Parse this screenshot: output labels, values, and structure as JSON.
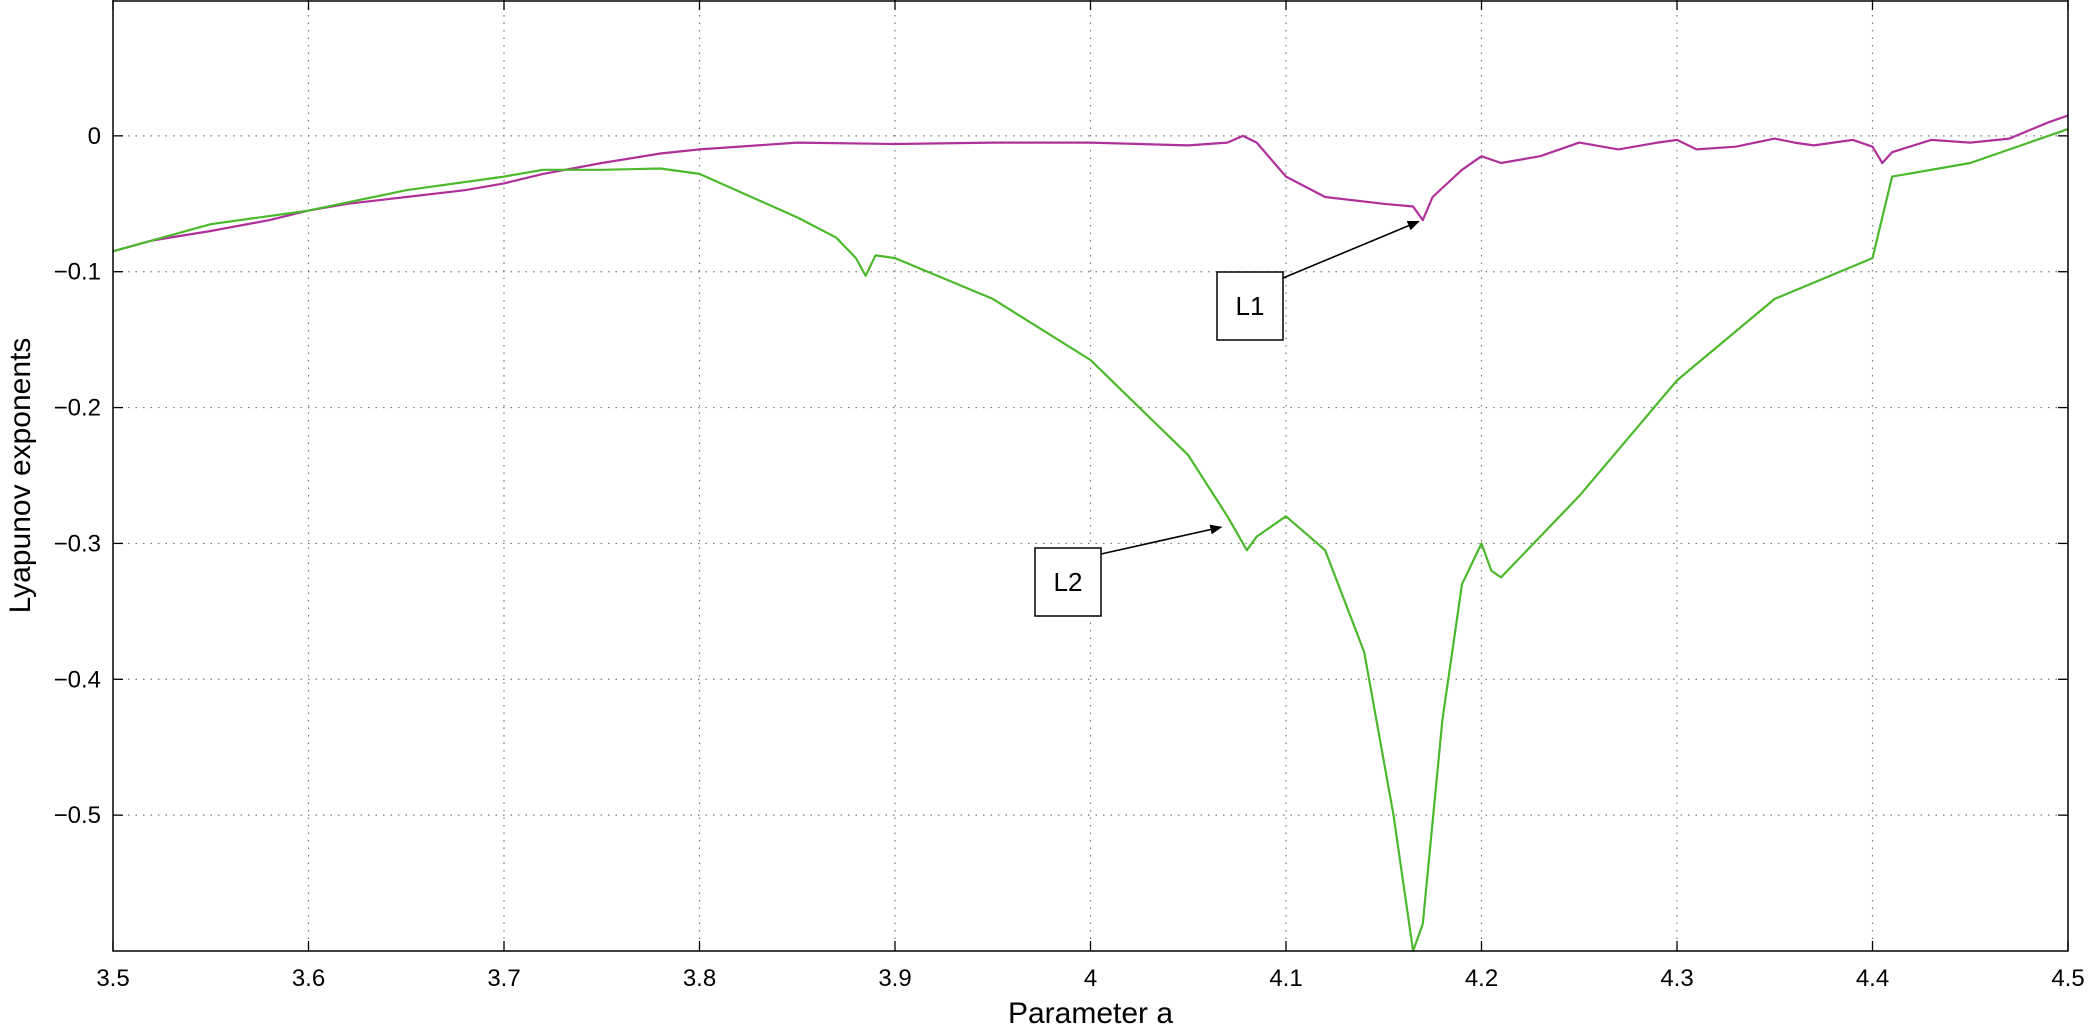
{
  "chart_data": {
    "type": "line",
    "xlabel": "Parameter a",
    "ylabel": "Lyapunov exponents",
    "xlim": [
      3.5,
      4.5
    ],
    "ylim": [
      -0.6,
      0.1
    ],
    "xticks": [
      3.5,
      3.6,
      3.7,
      3.8,
      3.9,
      4,
      4.1,
      4.2,
      4.3,
      4.4,
      4.5
    ],
    "xtick_labels": [
      "3.5",
      "3.6",
      "3.7",
      "3.8",
      "3.9",
      "4",
      "4.1",
      "4.2",
      "4.3",
      "4.4",
      "4.5"
    ],
    "yticks": [
      0,
      -0.1,
      -0.2,
      -0.3,
      -0.4,
      -0.5
    ],
    "ytick_labels": [
      "0",
      "−0.1",
      "−0.2",
      "−0.3",
      "−0.4",
      "−0.5"
    ],
    "grid": true,
    "series": [
      {
        "name": "L1",
        "color": "#b0309a",
        "x": [
          3.5,
          3.52,
          3.55,
          3.58,
          3.6,
          3.62,
          3.65,
          3.68,
          3.7,
          3.72,
          3.75,
          3.78,
          3.8,
          3.85,
          3.9,
          3.95,
          4.0,
          4.05,
          4.07,
          4.078,
          4.085,
          4.1,
          4.12,
          4.15,
          4.165,
          4.17,
          4.175,
          4.19,
          4.2,
          4.21,
          4.23,
          4.25,
          4.27,
          4.29,
          4.3,
          4.31,
          4.33,
          4.35,
          4.36,
          4.37,
          4.39,
          4.4,
          4.405,
          4.41,
          4.43,
          4.45,
          4.47,
          4.49,
          4.5
        ],
        "y": [
          -0.085,
          -0.077,
          -0.07,
          -0.062,
          -0.055,
          -0.05,
          -0.045,
          -0.04,
          -0.035,
          -0.028,
          -0.02,
          -0.013,
          -0.01,
          -0.005,
          -0.006,
          -0.005,
          -0.005,
          -0.007,
          -0.005,
          0.0,
          -0.005,
          -0.03,
          -0.045,
          -0.05,
          -0.052,
          -0.062,
          -0.045,
          -0.025,
          -0.015,
          -0.02,
          -0.015,
          -0.005,
          -0.01,
          -0.005,
          -0.003,
          -0.01,
          -0.008,
          -0.002,
          -0.005,
          -0.007,
          -0.003,
          -0.008,
          -0.02,
          -0.012,
          -0.003,
          -0.005,
          -0.002,
          0.01,
          0.015
        ]
      },
      {
        "name": "L2",
        "color": "#4cb82c",
        "x": [
          3.5,
          3.55,
          3.6,
          3.65,
          3.7,
          3.72,
          3.75,
          3.78,
          3.8,
          3.85,
          3.87,
          3.88,
          3.885,
          3.89,
          3.9,
          3.95,
          4.0,
          4.05,
          4.07,
          4.08,
          4.085,
          4.1,
          4.12,
          4.14,
          4.155,
          4.165,
          4.17,
          4.18,
          4.19,
          4.2,
          4.205,
          4.21,
          4.25,
          4.3,
          4.35,
          4.4,
          4.41,
          4.45,
          4.5
        ],
        "y": [
          -0.085,
          -0.065,
          -0.055,
          -0.04,
          -0.03,
          -0.025,
          -0.025,
          -0.024,
          -0.028,
          -0.06,
          -0.075,
          -0.09,
          -0.103,
          -0.088,
          -0.09,
          -0.12,
          -0.165,
          -0.235,
          -0.28,
          -0.305,
          -0.295,
          -0.28,
          -0.305,
          -0.38,
          -0.5,
          -0.6,
          -0.58,
          -0.43,
          -0.33,
          -0.3,
          -0.32,
          -0.325,
          -0.265,
          -0.18,
          -0.12,
          -0.09,
          -0.03,
          -0.02,
          0.005
        ]
      }
    ],
    "annotations": [
      {
        "text": "L1",
        "x": 4.171,
        "y": -0.063
      },
      {
        "text": "L2",
        "x": 4.07,
        "y": -0.288
      }
    ]
  }
}
